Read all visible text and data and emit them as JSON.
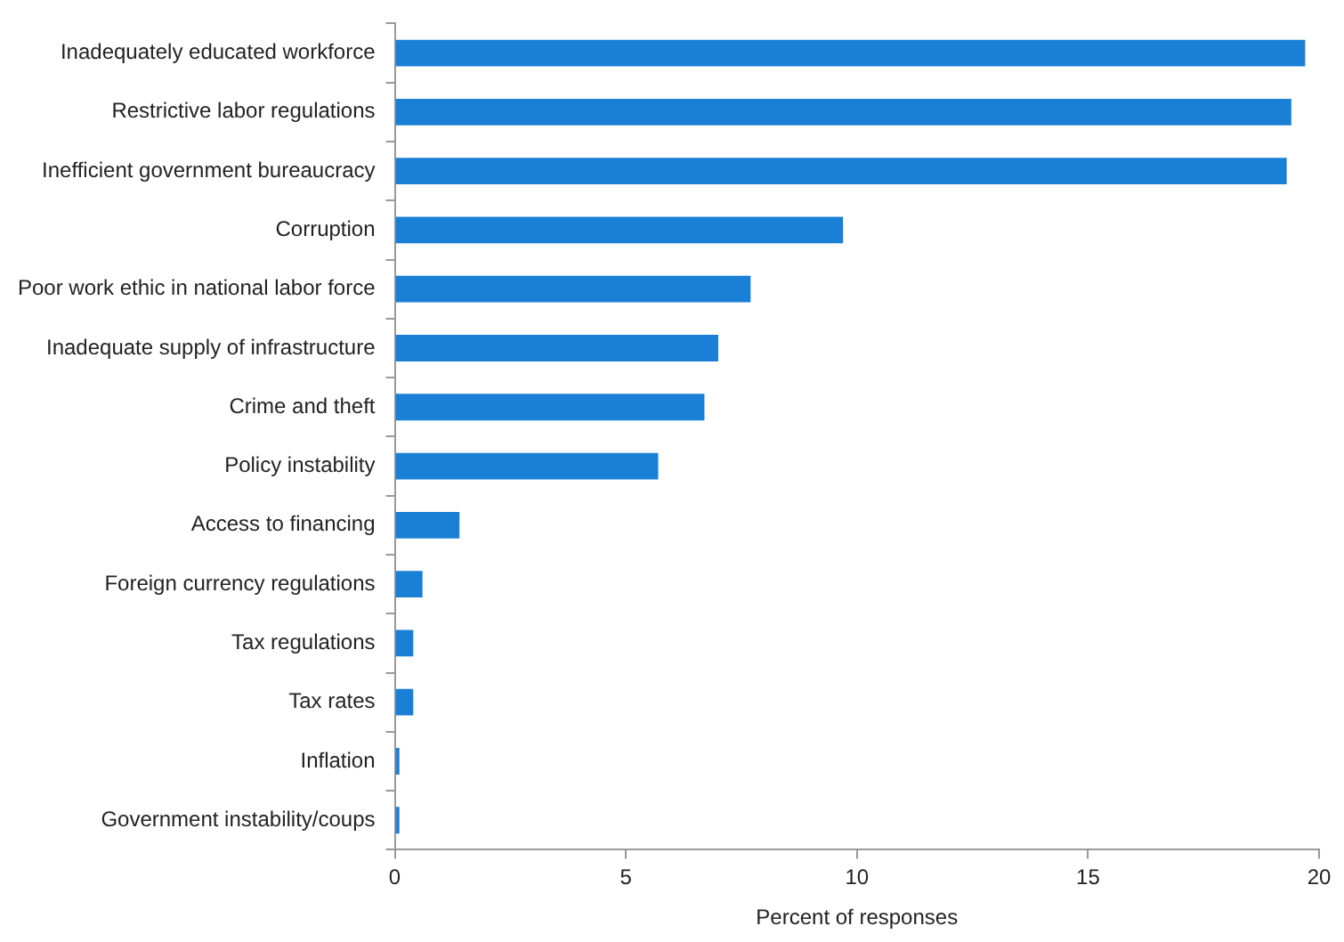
{
  "chart_data": {
    "type": "bar",
    "orientation": "horizontal",
    "xlabel": "Percent of responses",
    "categories": [
      "Inadequately educated workforce",
      "Restrictive labor regulations",
      "Inefficient government bureaucracy",
      "Corruption",
      "Poor work ethic in national labor force",
      "Inadequate supply of infrastructure",
      "Crime and theft",
      "Policy instability",
      "Access to financing",
      "Foreign currency regulations",
      "Tax regulations",
      "Tax rates",
      "Inflation",
      "Government instability/coups"
    ],
    "values": [
      19.7,
      19.4,
      19.3,
      9.7,
      7.7,
      7.0,
      6.7,
      5.7,
      1.4,
      0.6,
      0.4,
      0.4,
      0.1,
      0.1
    ],
    "color": "#1a80d5",
    "xlim": [
      0,
      20
    ],
    "xticks": [
      0,
      5,
      10,
      15,
      20
    ],
    "grid": false,
    "legend": false
  }
}
